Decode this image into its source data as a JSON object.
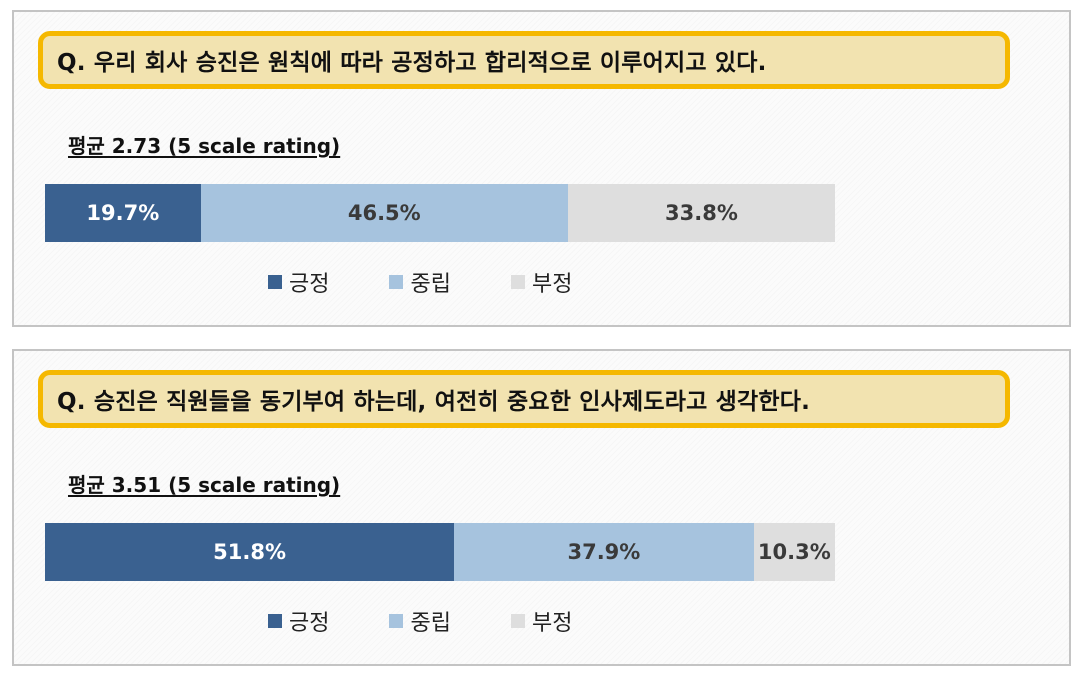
{
  "colors": {
    "positive": "#3a6190",
    "neutral": "#a6c3de",
    "negative": "#dedede",
    "question_border": "#f5b800",
    "question_fill": "#f2e3b0"
  },
  "chart_data": [
    {
      "type": "bar",
      "orientation": "horizontal-stacked-100",
      "question": "Q. 우리 회사 승진은 원칙에 따라 공정하고 합리적으로 이루어지고 있다.",
      "average_label": "평균 2.73 (5 scale rating)",
      "legend_position": "bottom",
      "series": [
        {
          "name": "긍정",
          "value": 19.7,
          "label": "19.7%"
        },
        {
          "name": "중립",
          "value": 46.5,
          "label": "46.5%"
        },
        {
          "name": "부정",
          "value": 33.8,
          "label": "33.8%"
        }
      ]
    },
    {
      "type": "bar",
      "orientation": "horizontal-stacked-100",
      "question": "Q. 승진은 직원들을 동기부여 하는데, 여전히 중요한 인사제도라고 생각한다.",
      "average_label": "평균 3.51 (5 scale rating)",
      "legend_position": "bottom",
      "series": [
        {
          "name": "긍정",
          "value": 51.8,
          "label": "51.8%"
        },
        {
          "name": "중립",
          "value": 37.9,
          "label": "37.9%"
        },
        {
          "name": "부정",
          "value": 10.3,
          "label": "10.3%"
        }
      ]
    }
  ]
}
